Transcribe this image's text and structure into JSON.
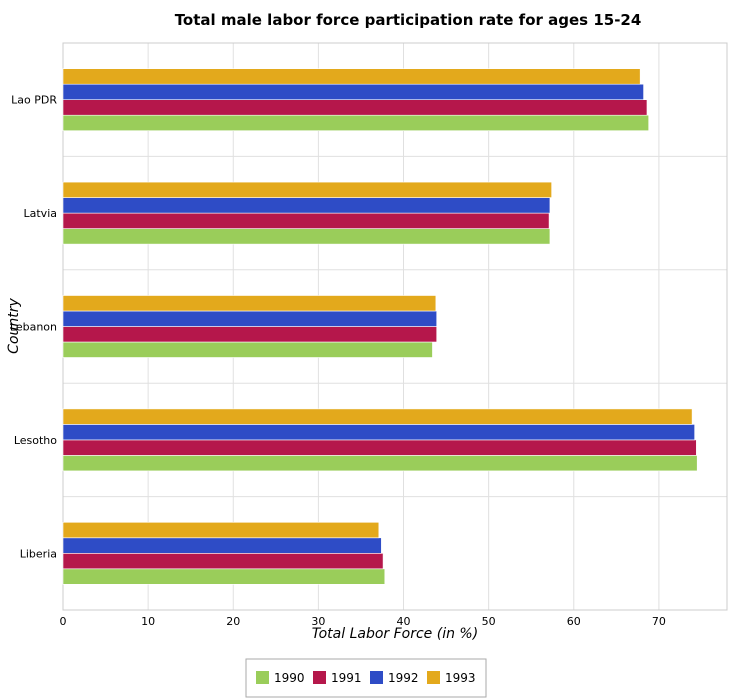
{
  "chart_data": {
    "type": "bar",
    "orientation": "horizontal",
    "title": "Total male labor force participation rate for ages 15-24",
    "xlabel": "Total Labor Force (in %)",
    "ylabel": "Country",
    "categories": [
      "Lao PDR",
      "Latvia",
      "Lebanon",
      "Lesotho",
      "Liberia"
    ],
    "xlim": [
      0,
      78
    ],
    "xticks": [
      0,
      10,
      20,
      30,
      40,
      50,
      60,
      70
    ],
    "grid": true,
    "legend_position": "bottom-center",
    "series": [
      {
        "name": "1990",
        "color": "#9acd5a",
        "values": [
          68.8,
          57.2,
          43.4,
          74.5,
          37.8
        ]
      },
      {
        "name": "1991",
        "color": "#b5174b",
        "values": [
          68.6,
          57.1,
          43.9,
          74.4,
          37.6
        ]
      },
      {
        "name": "1992",
        "color": "#2e4cc6",
        "values": [
          68.2,
          57.2,
          43.9,
          74.2,
          37.4
        ]
      },
      {
        "name": "1993",
        "color": "#e3a91c",
        "values": [
          67.8,
          57.4,
          43.8,
          73.9,
          37.1
        ]
      }
    ]
  }
}
